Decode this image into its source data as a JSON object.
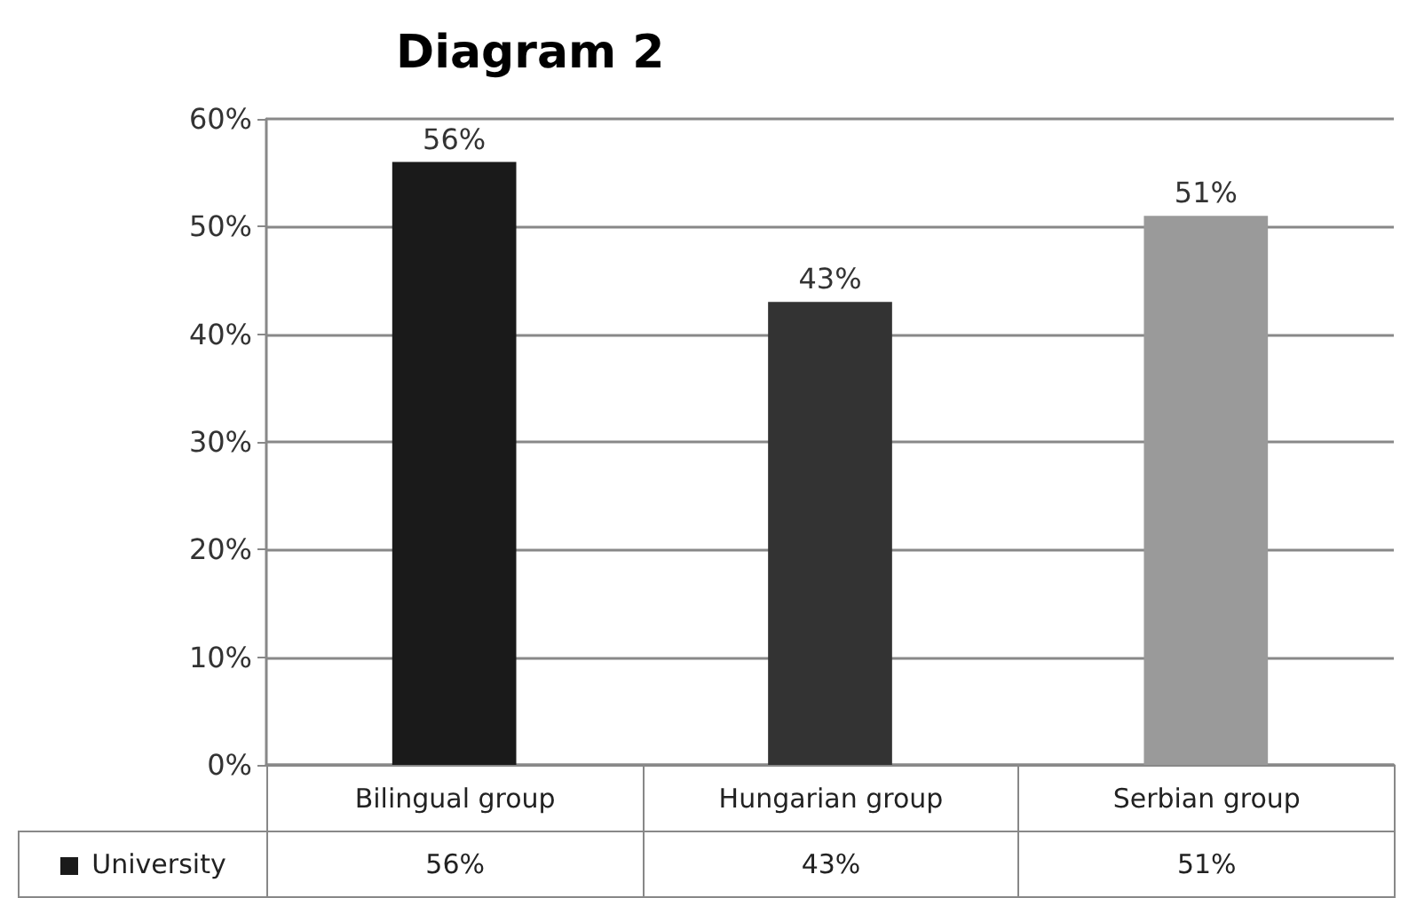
{
  "chart_data": {
    "type": "bar",
    "title": "Diagram 2",
    "categories": [
      "Bilingual group",
      "Hungarian group",
      "Serbian group"
    ],
    "series": [
      {
        "name": "University",
        "colors": [
          "#1a1a1a",
          "#333333",
          "#9a9a9a"
        ],
        "values": [
          56,
          43,
          51
        ],
        "value_labels": [
          "56%",
          "43%",
          "51%"
        ]
      }
    ],
    "ylim": [
      0,
      60
    ],
    "yticks": [
      {
        "value": 0,
        "label": "0%"
      },
      {
        "value": 10,
        "label": "10%"
      },
      {
        "value": 20,
        "label": "20%"
      },
      {
        "value": 30,
        "label": "30%"
      },
      {
        "value": 40,
        "label": "40%"
      },
      {
        "value": 50,
        "label": "50%"
      },
      {
        "value": 60,
        "label": "60%"
      }
    ],
    "grid": "y"
  }
}
